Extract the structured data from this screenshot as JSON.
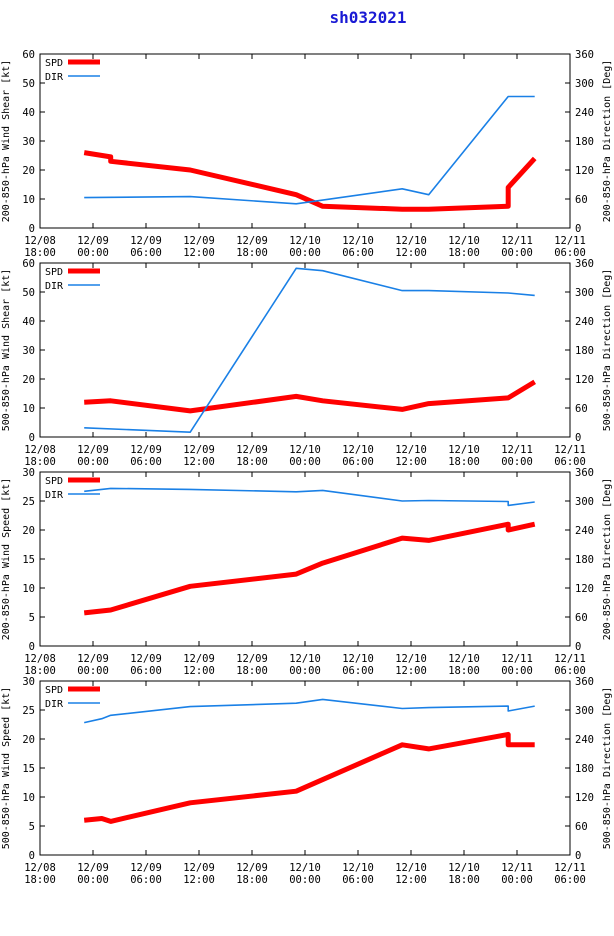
{
  "title": "sh032021",
  "colors": {
    "spd": "#ff0000",
    "dir": "#1a80e6",
    "title": "#1a1ad4"
  },
  "legend": {
    "spd": "SPD",
    "dir": "DIR"
  },
  "x_ticks": [
    {
      "date": "12/08",
      "time": "18:00"
    },
    {
      "date": "12/09",
      "time": "00:00"
    },
    {
      "date": "12/09",
      "time": "06:00"
    },
    {
      "date": "12/09",
      "time": "12:00"
    },
    {
      "date": "12/09",
      "time": "18:00"
    },
    {
      "date": "12/10",
      "time": "00:00"
    },
    {
      "date": "12/10",
      "time": "06:00"
    },
    {
      "date": "12/10",
      "time": "12:00"
    },
    {
      "date": "12/10",
      "time": "18:00"
    },
    {
      "date": "12/11",
      "time": "00:00"
    },
    {
      "date": "12/11",
      "time": "06:00"
    }
  ],
  "chart_data": [
    {
      "type": "line",
      "xlabel": "hours since 12/08 18:00",
      "xlim": [
        0,
        60
      ],
      "ylabel": "200-850-hPa Wind Shear [kt]",
      "ylim": [
        0,
        60
      ],
      "yticks": [
        0,
        10,
        20,
        30,
        40,
        50,
        60
      ],
      "y2label": "200-850-hPa Direction [Deg]",
      "y2lim": [
        0,
        360
      ],
      "y2ticks": [
        0,
        60,
        120,
        180,
        240,
        300,
        360
      ],
      "series": [
        {
          "name": "SPD",
          "axis": "left",
          "x": [
            5,
            8,
            8,
            17,
            29,
            32,
            41,
            44,
            53,
            53,
            56
          ],
          "y": [
            26,
            24.5,
            23,
            20,
            11.5,
            7.5,
            6.5,
            6.5,
            7.5,
            14,
            24
          ]
        },
        {
          "name": "DIR",
          "axis": "right",
          "x": [
            5,
            17,
            29,
            41,
            44,
            53,
            56
          ],
          "y": [
            63,
            65,
            50,
            81,
            69,
            272,
            272
          ]
        }
      ]
    },
    {
      "type": "line",
      "xlabel": "hours since 12/08 18:00",
      "xlim": [
        0,
        60
      ],
      "ylabel": "500-850-hPa Wind Shear [kt]",
      "ylim": [
        0,
        60
      ],
      "yticks": [
        0,
        10,
        20,
        30,
        40,
        50,
        60
      ],
      "y2label": "500-850-hPa Direction [Deg]",
      "y2lim": [
        0,
        360
      ],
      "y2ticks": [
        0,
        60,
        120,
        180,
        240,
        300,
        360
      ],
      "series": [
        {
          "name": "SPD",
          "axis": "left",
          "x": [
            5,
            8,
            17,
            29,
            32,
            41,
            44,
            53,
            56
          ],
          "y": [
            12,
            12.5,
            9,
            14,
            12.5,
            9.5,
            11.5,
            13.5,
            19
          ]
        },
        {
          "name": "DIR",
          "axis": "right",
          "x": [
            5,
            17,
            29,
            32,
            41,
            44,
            53,
            56
          ],
          "y": [
            19,
            10,
            349,
            344,
            303,
            303,
            298,
            293
          ]
        }
      ]
    },
    {
      "type": "line",
      "xlabel": "hours since 12/08 18:00",
      "xlim": [
        0,
        60
      ],
      "ylabel": "200-850-hPa Wind Speed [kt]",
      "ylim": [
        0,
        30
      ],
      "yticks": [
        0,
        5,
        10,
        15,
        20,
        25,
        30
      ],
      "y2label": "200-850-hPa Direction [Deg]",
      "y2lim": [
        0,
        360
      ],
      "y2ticks": [
        0,
        60,
        120,
        180,
        240,
        300,
        360
      ],
      "series": [
        {
          "name": "SPD",
          "axis": "left",
          "x": [
            5,
            8,
            17,
            29,
            32,
            41,
            44,
            53,
            53,
            56
          ],
          "y": [
            5.7,
            6.2,
            10.3,
            12.4,
            14.3,
            18.6,
            18.2,
            21,
            20,
            21
          ]
        },
        {
          "name": "DIR",
          "axis": "right",
          "x": [
            5,
            8,
            17,
            29,
            32,
            41,
            44,
            53,
            53,
            56
          ],
          "y": [
            320,
            326,
            324,
            319,
            322,
            300,
            301,
            299,
            291,
            298
          ]
        }
      ]
    },
    {
      "type": "line",
      "xlabel": "hours since 12/08 18:00",
      "xlim": [
        0,
        60
      ],
      "ylabel": "500-850-hPa Wind Speed [kt]",
      "ylim": [
        0,
        30
      ],
      "yticks": [
        0,
        5,
        10,
        15,
        20,
        25,
        30
      ],
      "y2label": "500-850-hPa Direction [Deg]",
      "y2lim": [
        0,
        360
      ],
      "y2ticks": [
        0,
        60,
        120,
        180,
        240,
        300,
        360
      ],
      "series": [
        {
          "name": "SPD",
          "axis": "left",
          "x": [
            5,
            7,
            8,
            17,
            29,
            32,
            41,
            44,
            53,
            53,
            56
          ],
          "y": [
            6,
            6.3,
            5.8,
            9,
            11,
            13,
            19,
            18.3,
            20.8,
            19,
            19
          ]
        },
        {
          "name": "DIR",
          "axis": "right",
          "x": [
            5,
            7,
            8,
            17,
            29,
            32,
            41,
            44,
            53,
            53,
            56
          ],
          "y": [
            274,
            282,
            289,
            307,
            314,
            322,
            303,
            305,
            308,
            298,
            308
          ]
        }
      ]
    }
  ]
}
